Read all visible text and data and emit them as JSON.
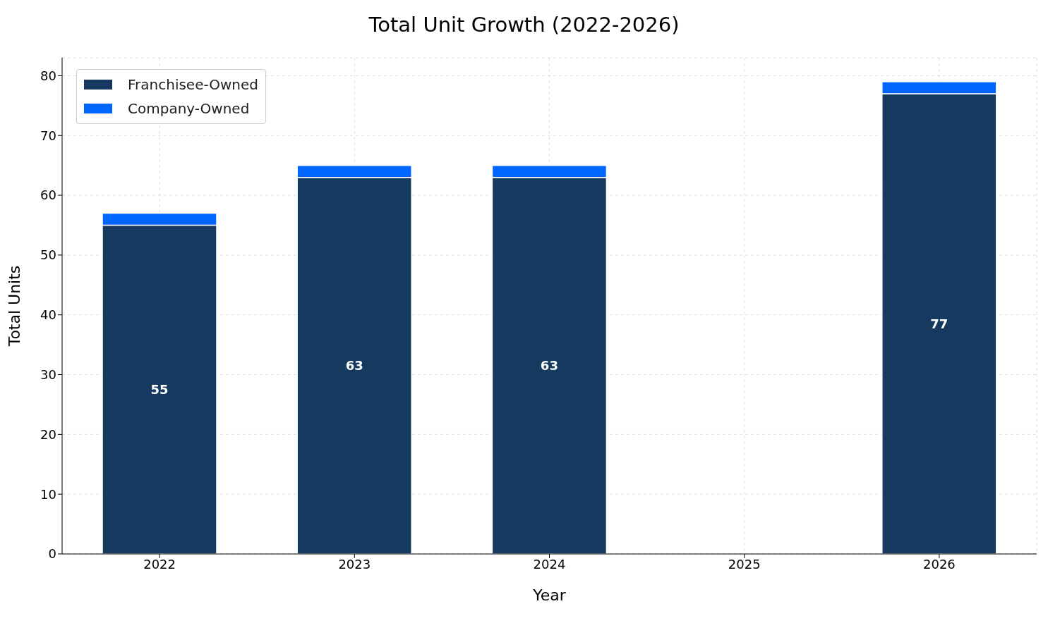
{
  "chart_data": {
    "type": "bar",
    "title": "Total Unit Growth (2022-2026)",
    "xlabel": "Year",
    "ylabel": "Total Units",
    "categories": [
      "2022",
      "2023",
      "2024",
      "2025",
      "2026"
    ],
    "series": [
      {
        "name": "Franchisee-Owned",
        "color": "#15395f",
        "values": [
          55,
          63,
          63,
          null,
          77
        ],
        "value_labels": [
          "55",
          "63",
          "63",
          null,
          "77"
        ]
      },
      {
        "name": "Company-Owned",
        "color": "#0066ff",
        "values": [
          2,
          2,
          2,
          null,
          2
        ]
      }
    ],
    "stacked": true,
    "ylim": [
      0,
      83
    ],
    "yticks": [
      0,
      10,
      20,
      30,
      40,
      50,
      60,
      70,
      80
    ],
    "grid": true,
    "legend": "top left"
  }
}
